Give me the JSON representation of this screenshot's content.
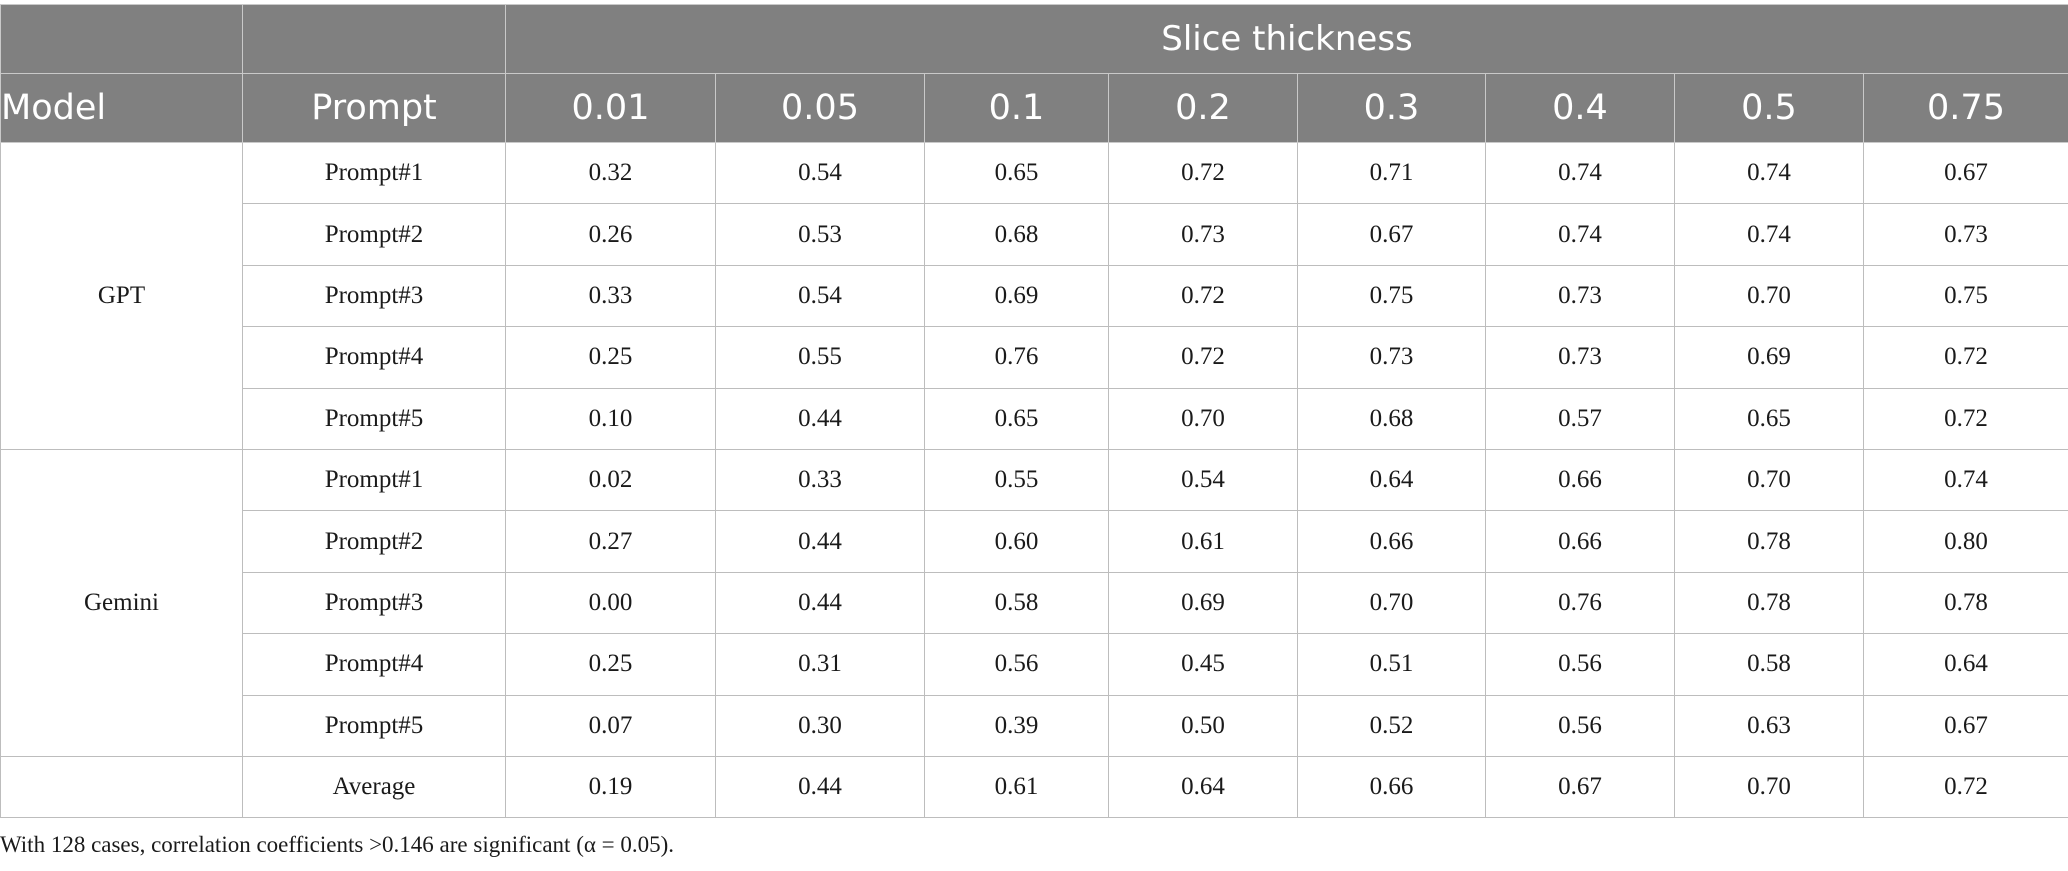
{
  "table": {
    "group_header": "Slice thickness",
    "col_model": "Model",
    "col_prompt": "Prompt",
    "thickness": [
      "0.01",
      "0.05",
      "0.1",
      "0.2",
      "0.3",
      "0.4",
      "0.5",
      "0.75"
    ],
    "groups": [
      {
        "model": "GPT",
        "rows": [
          {
            "prompt": "Prompt#1",
            "values": [
              "0.32",
              "0.54",
              "0.65",
              "0.72",
              "0.71",
              "0.74",
              "0.74",
              "0.67"
            ]
          },
          {
            "prompt": "Prompt#2",
            "values": [
              "0.26",
              "0.53",
              "0.68",
              "0.73",
              "0.67",
              "0.74",
              "0.74",
              "0.73"
            ]
          },
          {
            "prompt": "Prompt#3",
            "values": [
              "0.33",
              "0.54",
              "0.69",
              "0.72",
              "0.75",
              "0.73",
              "0.70",
              "0.75"
            ]
          },
          {
            "prompt": "Prompt#4",
            "values": [
              "0.25",
              "0.55",
              "0.76",
              "0.72",
              "0.73",
              "0.73",
              "0.69",
              "0.72"
            ]
          },
          {
            "prompt": "Prompt#5",
            "values": [
              "0.10",
              "0.44",
              "0.65",
              "0.70",
              "0.68",
              "0.57",
              "0.65",
              "0.72"
            ]
          }
        ]
      },
      {
        "model": "Gemini",
        "rows": [
          {
            "prompt": "Prompt#1",
            "values": [
              "0.02",
              "0.33",
              "0.55",
              "0.54",
              "0.64",
              "0.66",
              "0.70",
              "0.74"
            ]
          },
          {
            "prompt": "Prompt#2",
            "values": [
              "0.27",
              "0.44",
              "0.60",
              "0.61",
              "0.66",
              "0.66",
              "0.78",
              "0.80"
            ]
          },
          {
            "prompt": "Prompt#3",
            "values": [
              "0.00",
              "0.44",
              "0.58",
              "0.69",
              "0.70",
              "0.76",
              "0.78",
              "0.78"
            ]
          },
          {
            "prompt": "Prompt#4",
            "values": [
              "0.25",
              "0.31",
              "0.56",
              "0.45",
              "0.51",
              "0.56",
              "0.58",
              "0.64"
            ]
          },
          {
            "prompt": "Prompt#5",
            "values": [
              "0.07",
              "0.30",
              "0.39",
              "0.50",
              "0.52",
              "0.56",
              "0.63",
              "0.67"
            ]
          }
        ]
      }
    ],
    "average": {
      "label": "Average",
      "values": [
        "0.19",
        "0.44",
        "0.61",
        "0.64",
        "0.66",
        "0.67",
        "0.70",
        "0.72"
      ]
    }
  },
  "footnote": "With 128 cases, correlation coefficients >0.146 are significant (α = 0.05).",
  "colors": {
    "header_bg": "#808080",
    "header_text": "#ffffff",
    "grid_line": "#bdbdbd"
  }
}
